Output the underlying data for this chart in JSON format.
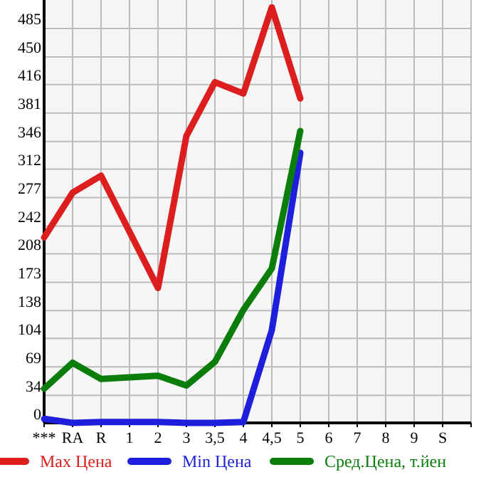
{
  "chart_data": {
    "type": "line",
    "categories": [
      "***",
      "RA",
      "R",
      "1",
      "2",
      "3",
      "3,5",
      "4",
      "4,5",
      "5",
      "6",
      "7",
      "8",
      "9",
      "S"
    ],
    "ylim": [
      0,
      520
    ],
    "yticks": [
      0,
      34,
      69,
      104,
      138,
      173,
      208,
      242,
      277,
      312,
      346,
      381,
      416,
      450,
      485
    ],
    "grid": true,
    "legend": "bottom",
    "line_style": "solid",
    "marker": "none",
    "series": [
      {
        "name": "Max Цена",
        "color": "#dd1e1e",
        "values": [
          228,
          283,
          304,
          235,
          166,
          353,
          419,
          405,
          511,
          399,
          null,
          null,
          null,
          null,
          null
        ]
      },
      {
        "name": "Min Цена",
        "color": "#1e1edd",
        "values": [
          5,
          0,
          1,
          1,
          1,
          0,
          0,
          1,
          114,
          332,
          null,
          null,
          null,
          null,
          null
        ]
      },
      {
        "name": "Сред.Цена, т.йен",
        "color": "#0a7d0a",
        "values": [
          42,
          74,
          54,
          56,
          58,
          46,
          75,
          139,
          190,
          359,
          null,
          null,
          null,
          null,
          null
        ]
      }
    ]
  }
}
